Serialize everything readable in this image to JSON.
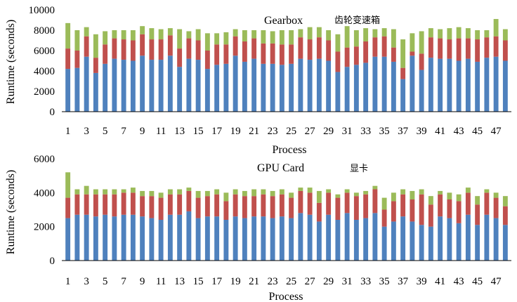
{
  "colors": {
    "segment1": "#4f81bd",
    "segment2": "#c0504d",
    "segment3": "#9bbb59"
  },
  "chart_data": [
    {
      "type": "bar",
      "stacked": true,
      "title": "Gearbox",
      "subtitle": "齿轮变速箱",
      "xlabel": "Process",
      "ylabel": "Runtime (seconds)",
      "ylim": [
        0,
        10000
      ],
      "yticks": [
        "0",
        "2000",
        "4000",
        "6000",
        "8000",
        "10000"
      ],
      "categories": [
        "1",
        "2",
        "3",
        "4",
        "5",
        "6",
        "7",
        "8",
        "9",
        "10",
        "11",
        "12",
        "13",
        "14",
        "15",
        "16",
        "17",
        "18",
        "19",
        "20",
        "21",
        "22",
        "23",
        "24",
        "25",
        "26",
        "27",
        "28",
        "29",
        "30",
        "31",
        "32",
        "33",
        "34",
        "35",
        "36",
        "37",
        "38",
        "39",
        "40",
        "41",
        "42",
        "43",
        "44",
        "45",
        "46",
        "47",
        "48"
      ],
      "series": [
        {
          "values": [
            4200,
            4300,
            5400,
            3800,
            4700,
            5200,
            5100,
            5000,
            5500,
            5100,
            5100,
            5500,
            4400,
            5200,
            5100,
            4200,
            4600,
            4700,
            5500,
            4900,
            5200,
            4700,
            4700,
            4600,
            4700,
            5200,
            5100,
            5200,
            5000,
            3900,
            4400,
            4600,
            4800,
            5400,
            5400,
            4900,
            3200,
            5500,
            4100,
            5300,
            5200,
            5200,
            5000,
            5200,
            4900,
            5300,
            5400,
            5000
          ]
        },
        {
          "values": [
            2000,
            1700,
            2000,
            1500,
            1900,
            2000,
            2000,
            2000,
            2100,
            2000,
            2000,
            2000,
            1800,
            2000,
            1900,
            1800,
            2000,
            1900,
            1900,
            2000,
            2000,
            2000,
            2000,
            2000,
            1900,
            2100,
            2000,
            2100,
            2000,
            2000,
            1900,
            1800,
            2100,
            1900,
            2000,
            1400,
            1100,
            400,
            1600,
            2000,
            2000,
            1900,
            2200,
            2000,
            2200,
            2000,
            2000,
            2000
          ]
        },
        {
          "values": [
            2500,
            2000,
            900,
            2300,
            1300,
            800,
            900,
            1000,
            800,
            1100,
            1000,
            700,
            1900,
            700,
            1100,
            1700,
            1100,
            1200,
            700,
            1100,
            800,
            1300,
            1200,
            1400,
            1400,
            800,
            1200,
            1000,
            1000,
            1700,
            2100,
            1600,
            1300,
            800,
            800,
            1800,
            2800,
            1800,
            2200,
            900,
            900,
            1100,
            1100,
            1000,
            900,
            700,
            1700,
            1100
          ]
        }
      ]
    },
    {
      "type": "bar",
      "stacked": true,
      "title": "GPU Card",
      "subtitle": "显卡",
      "xlabel": "Process",
      "ylabel": "Runtime (seconds)",
      "ylim": [
        0,
        6000
      ],
      "yticks": [
        "0",
        "2000",
        "4000",
        "6000"
      ],
      "categories": [
        "1",
        "2",
        "3",
        "4",
        "5",
        "6",
        "7",
        "8",
        "9",
        "10",
        "11",
        "12",
        "13",
        "14",
        "15",
        "16",
        "17",
        "18",
        "19",
        "20",
        "21",
        "22",
        "23",
        "24",
        "25",
        "26",
        "27",
        "28",
        "29",
        "30",
        "31",
        "32",
        "33",
        "34",
        "35",
        "36",
        "37",
        "38",
        "39",
        "40",
        "41",
        "42",
        "43",
        "44",
        "45",
        "46",
        "47",
        "48"
      ],
      "series": [
        {
          "values": [
            2500,
            2700,
            2700,
            2600,
            2700,
            2600,
            2700,
            2700,
            2600,
            2500,
            2400,
            2700,
            2700,
            2900,
            2500,
            2600,
            2600,
            2400,
            2600,
            2500,
            2600,
            2600,
            2500,
            2600,
            2500,
            2800,
            2700,
            2300,
            2700,
            2400,
            2800,
            2400,
            2500,
            2800,
            2000,
            2300,
            2600,
            2300,
            2100,
            2000,
            2600,
            2500,
            2200,
            2700,
            2100,
            2700,
            2500,
            2100
          ]
        },
        {
          "values": [
            1200,
            1200,
            1200,
            1300,
            1200,
            1300,
            1300,
            1300,
            1200,
            1300,
            1300,
            1200,
            1200,
            1200,
            1200,
            1200,
            1300,
            1100,
            1300,
            1300,
            1200,
            1300,
            1300,
            1300,
            1200,
            1300,
            1300,
            1100,
            1300,
            1300,
            1200,
            1400,
            1400,
            1400,
            1000,
            1200,
            1300,
            1300,
            1800,
            1300,
            1300,
            1100,
            1300,
            1300,
            1200,
            1300,
            1200,
            1100
          ]
        },
        {
          "values": [
            1500,
            300,
            500,
            300,
            300,
            300,
            200,
            300,
            300,
            300,
            300,
            300,
            300,
            200,
            400,
            300,
            300,
            500,
            300,
            300,
            400,
            300,
            300,
            300,
            300,
            200,
            300,
            700,
            200,
            200,
            200,
            200,
            200,
            200,
            700,
            500,
            300,
            500,
            300,
            500,
            200,
            400,
            400,
            300,
            500,
            200,
            300,
            600
          ]
        }
      ]
    }
  ]
}
